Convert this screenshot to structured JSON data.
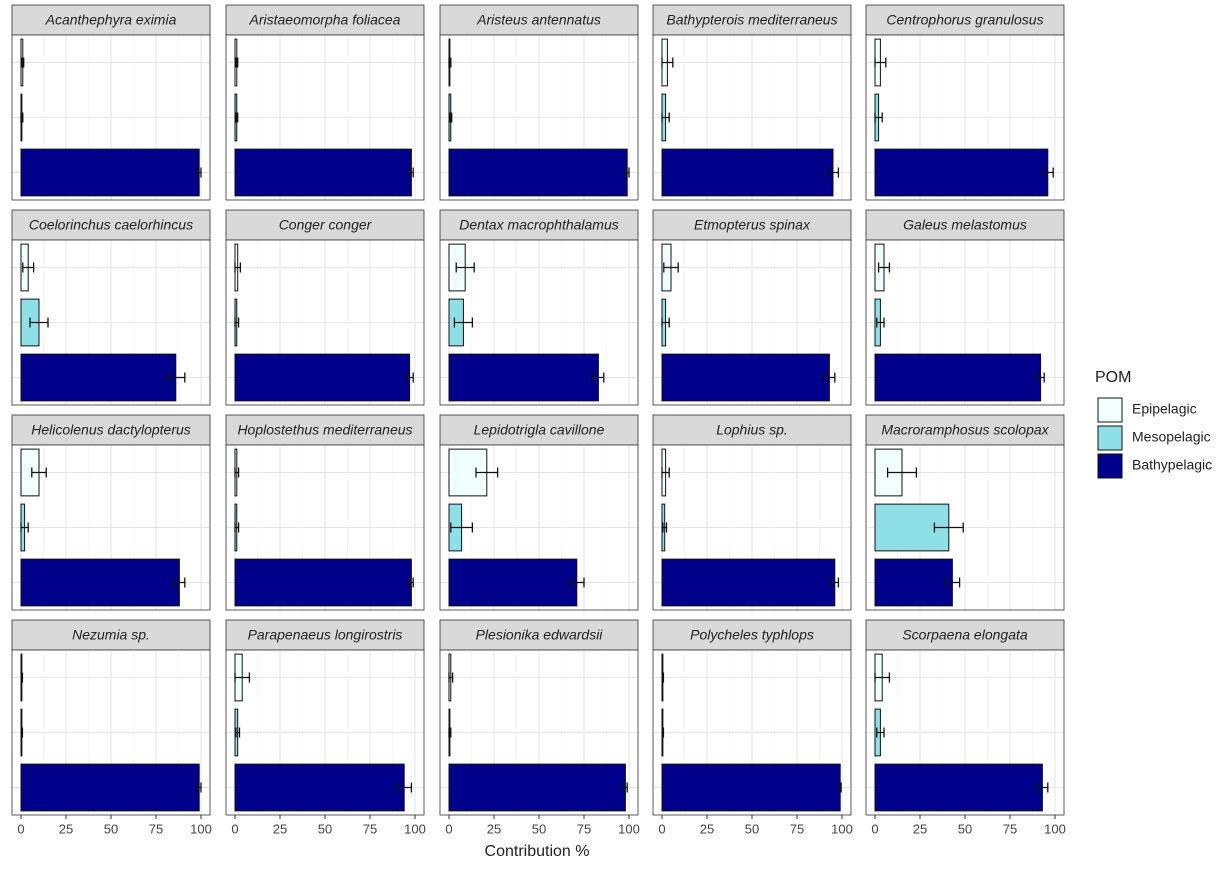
{
  "chart_data": {
    "type": "bar",
    "xlabel": "Contribution %",
    "legend_title": "POM",
    "xlim": [
      -5,
      105
    ],
    "xticks": [
      0,
      25,
      50,
      75,
      100
    ],
    "grid": true,
    "categories": [
      "Acanthephyra eximia",
      "Aristaeomorpha foliacea",
      "Aristeus antennatus",
      "Bathypterois mediterraneus",
      "Centrophorus granulosus",
      "Coelorinchus caelorhincus",
      "Conger conger",
      "Dentax macrophthalamus",
      "Etmopterus spinax",
      "Galeus melastomus",
      "Helicolenus dactylopterus",
      "Hoplostethus mediterraneus",
      "Lepidotrigla cavillone",
      "Lophius sp.",
      "Macroramphosus scolopax",
      "Nezumia sp.",
      "Parapenaeus longirostris",
      "Plesionika edwardsii",
      "Polycheles  typhlops",
      "Scorpaena elongata"
    ],
    "series": [
      {
        "name": "Epipelagic",
        "color": "#f0ffff",
        "values": [
          1,
          1,
          0.5,
          3,
          3,
          4,
          1.5,
          9,
          5,
          5,
          10,
          1,
          21,
          2,
          15,
          0.5,
          4,
          1,
          0.5,
          4
        ],
        "errors": [
          0.5,
          0.5,
          0.5,
          3,
          3,
          3,
          1.5,
          5,
          4,
          3,
          4,
          1,
          6,
          2,
          8,
          0.3,
          4,
          1,
          0.3,
          4
        ]
      },
      {
        "name": "Mesopelagic",
        "color": "#8ee0e6",
        "values": [
          0.5,
          1,
          1,
          2,
          2,
          10,
          1,
          8,
          2,
          3,
          2,
          1,
          7,
          1.5,
          41,
          0.5,
          1.5,
          0.5,
          0.5,
          3
        ],
        "errors": [
          0.5,
          0.5,
          0.5,
          2,
          2,
          5,
          1,
          5,
          2,
          2,
          2,
          1,
          6,
          1,
          8,
          0.3,
          1,
          0.5,
          0.3,
          2
        ]
      },
      {
        "name": "Bathypelagic",
        "color": "#00008b",
        "values": [
          99,
          98,
          99,
          95,
          96,
          86,
          97,
          83,
          93,
          92,
          88,
          98,
          71,
          96,
          43,
          99,
          94,
          98,
          99,
          93
        ],
        "errors": [
          1,
          1,
          1,
          3,
          3,
          5,
          2,
          3,
          3,
          2,
          3,
          1,
          4,
          2,
          4,
          1,
          4,
          1,
          0.5,
          3
        ]
      }
    ]
  }
}
